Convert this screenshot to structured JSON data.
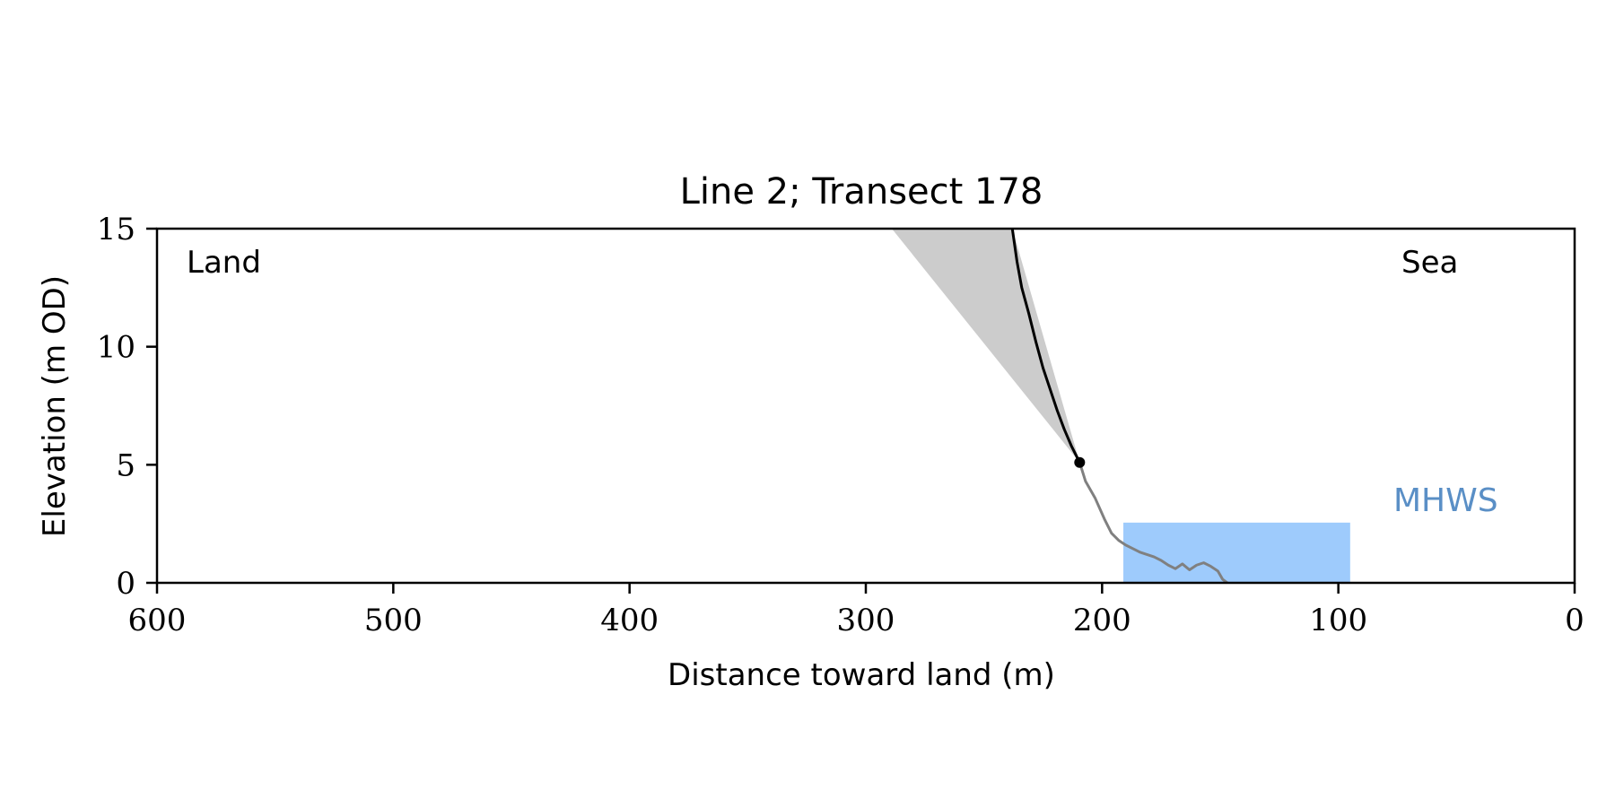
{
  "chart_data": {
    "type": "line",
    "title": "Line 2; Transect 178",
    "xlabel": "Distance toward land (m)",
    "ylabel": "Elevation (m OD)",
    "xlim": [
      600,
      0
    ],
    "ylim": [
      0,
      15
    ],
    "x_ticks": [
      600,
      500,
      400,
      300,
      200,
      100,
      0
    ],
    "y_ticks": [
      0,
      5,
      10,
      15
    ],
    "x_tick_labels": [
      "600",
      "500",
      "400",
      "300",
      "200",
      "100",
      "0"
    ],
    "y_tick_labels": [
      "0",
      "5",
      "10",
      "15"
    ],
    "grid": false,
    "annotations": {
      "land": "Land",
      "sea": "Sea",
      "mhws": "MHWS"
    },
    "colors": {
      "cliff": "#000000",
      "beach": "#808080",
      "shade": "#cccccc",
      "water": "#9ecbfc",
      "mhws_text": "#5a8fc6"
    },
    "series": [
      {
        "role": "cliff",
        "x": [
          238,
          236,
          234,
          231,
          228,
          225,
          222,
          219,
          216,
          213,
          211,
          209.5
        ],
        "y": [
          15,
          13.6,
          12.5,
          11.4,
          10.2,
          9.1,
          8.2,
          7.3,
          6.5,
          5.8,
          5.4,
          5.1
        ]
      },
      {
        "role": "beach",
        "x": [
          209.5,
          207,
          203,
          199,
          196,
          193,
          190,
          187,
          184,
          181,
          178,
          175,
          172,
          169,
          166,
          163,
          160,
          157,
          154,
          151,
          149,
          147
        ],
        "y": [
          5.1,
          4.3,
          3.6,
          2.7,
          2.1,
          1.8,
          1.6,
          1.45,
          1.3,
          1.2,
          1.1,
          0.95,
          0.75,
          0.6,
          0.8,
          0.55,
          0.75,
          0.85,
          0.7,
          0.5,
          0.15,
          0
        ]
      }
    ],
    "cliff_top_point": {
      "x": 209.5,
      "y": 5.1
    },
    "shaded_region": {
      "x": [
        289,
        238,
        209.5
      ],
      "y": [
        15,
        15,
        5.1
      ]
    },
    "water_region": {
      "x_range": [
        191,
        95
      ],
      "y_range": [
        0,
        2.55
      ]
    },
    "mhws_level": 2.55
  }
}
